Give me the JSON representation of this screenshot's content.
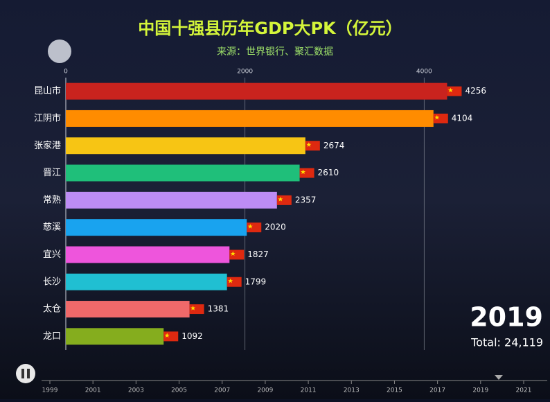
{
  "chart_data": {
    "type": "bar",
    "orientation": "horizontal",
    "title": "中国十强县历年GDP大PK（亿元）",
    "subtitle": "来源：世界银行、聚汇数据",
    "categories": [
      "昆山市",
      "江阴市",
      "张家港",
      "晋江",
      "常熟",
      "慈溪",
      "宜兴",
      "长沙",
      "太仓",
      "龙口"
    ],
    "values": [
      4256,
      4104,
      2674,
      2610,
      2357,
      2020,
      1827,
      1799,
      1381,
      1092
    ],
    "colors": [
      "#c9231e",
      "#ff8c00",
      "#f7c514",
      "#1fbf7a",
      "#bd8cf5",
      "#19a3ef",
      "#ee55dc",
      "#20bfd2",
      "#f0696a",
      "#85ad1e"
    ],
    "xlim": [
      0,
      4500
    ],
    "xticks": [
      0,
      2000,
      4000
    ],
    "grid": true,
    "year": 2019,
    "total": "Total: 24,119",
    "timeline_ticks": [
      1999,
      2001,
      2003,
      2005,
      2007,
      2009,
      2011,
      2013,
      2015,
      2017,
      2019,
      2021
    ]
  }
}
